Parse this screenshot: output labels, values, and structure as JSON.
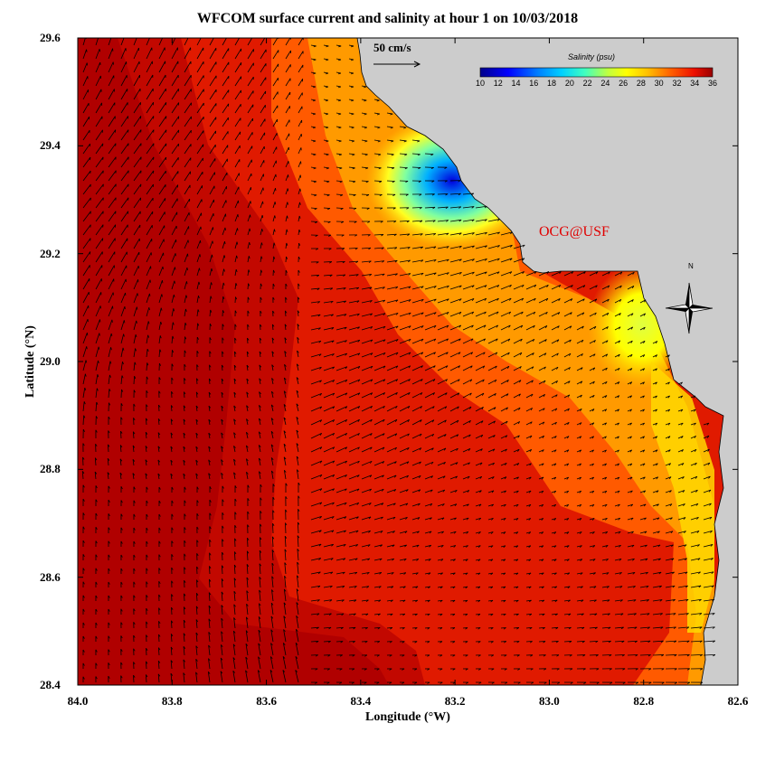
{
  "title": "WFCOM surface current and salinity at hour 1 on 10/03/2018",
  "xlabel": "Longitude (°W)",
  "ylabel": "Latitude (°N)",
  "x_ticks": [
    "84.0",
    "83.8",
    "83.6",
    "83.4",
    "83.2",
    "83.0",
    "82.8",
    "82.6"
  ],
  "y_ticks": [
    "29.6",
    "29.4",
    "29.2",
    "29.0",
    "28.8",
    "28.6",
    "28.4"
  ],
  "credit": "OCG@USF",
  "scale_label": "50 cm/s",
  "colorbar": {
    "title": "Salinity (psu)",
    "ticks": [
      "10",
      "12",
      "14",
      "16",
      "18",
      "20",
      "22",
      "24",
      "26",
      "28",
      "30",
      "32",
      "34",
      "36"
    ]
  },
  "compass_label": "N",
  "colors": {
    "land": "#cccccc",
    "low_salinity": "#0000cc",
    "high_salinity": "#aa0000",
    "credit": "#e00000"
  }
}
